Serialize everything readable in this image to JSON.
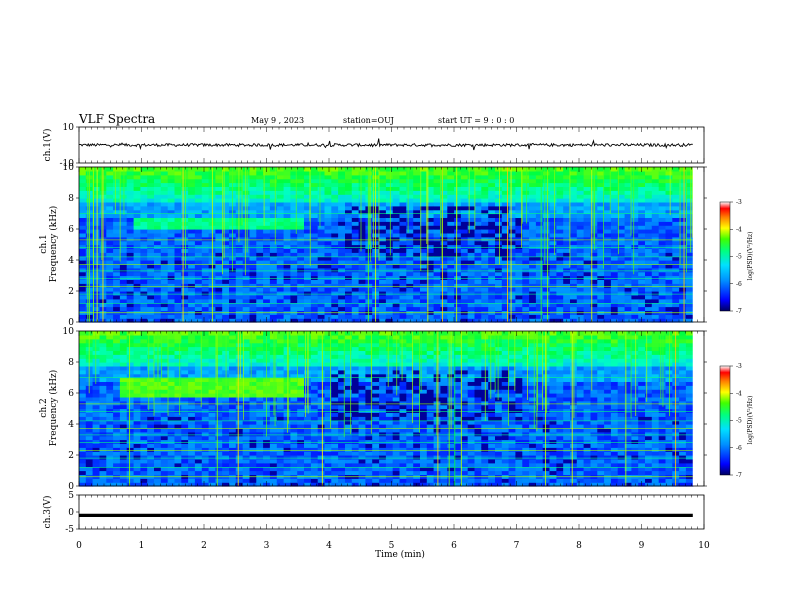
{
  "header": {
    "title": "VLF Spectra",
    "date": "May 9 , 2023",
    "station": "station=OUJ",
    "start_ut": "start UT = 9 : 0 : 0"
  },
  "chart_data": [
    {
      "type": "line",
      "id": "ch1-waveform",
      "ylabel": "ch.1(V)",
      "xlim": [
        0,
        10
      ],
      "ylim": [
        -10,
        10
      ],
      "ytick_labels": [
        "10",
        "-10"
      ],
      "series_summary": "noise trace around 0 V, amplitude ~±1 V, occasional spikes",
      "baseline_y": 0
    },
    {
      "type": "heatmap",
      "id": "ch1-spectrogram",
      "ylabel": "ch.1\nFrequency (kHz)",
      "ylim": [
        0,
        10
      ],
      "ytick_labels": [
        "0",
        "2",
        "4",
        "6",
        "8",
        "10"
      ],
      "colorbar": {
        "label": "log(PSD)(V²/Hz)",
        "range": [
          -7,
          -3
        ],
        "tick_labels": [
          "-3",
          "-4",
          "-5",
          "-6",
          "-7"
        ]
      },
      "features": [
        {
          "name": "hiss band",
          "t": [
            0.8,
            3.6
          ],
          "f": [
            5.8,
            6.6
          ]
        },
        {
          "name": "upper broadband",
          "t": [
            0,
            9.8
          ],
          "f": [
            7.5,
            10
          ]
        }
      ]
    },
    {
      "type": "heatmap",
      "id": "ch2-spectrogram",
      "ylabel": "ch.2\nFrequency (kHz)",
      "ylim": [
        0,
        10
      ],
      "ytick_labels": [
        "0",
        "2",
        "4",
        "6",
        "8",
        "10"
      ],
      "colorbar": {
        "label": "log(PSD)(V²/Hz)",
        "range": [
          -7,
          -3
        ],
        "tick_labels": [
          "-3",
          "-4",
          "-5",
          "-6",
          "-7"
        ]
      },
      "features": [
        {
          "name": "hiss band",
          "t": [
            0.6,
            3.6
          ],
          "f": [
            5.6,
            6.8
          ]
        },
        {
          "name": "upper broadband",
          "t": [
            0,
            9.8
          ],
          "f": [
            7.5,
            10
          ]
        }
      ]
    },
    {
      "type": "line",
      "id": "ch3-waveform",
      "ylabel": "ch.3(V)",
      "xlim": [
        0,
        10
      ],
      "ylim": [
        -5,
        5
      ],
      "ytick_labels": [
        "5",
        "0",
        "-5"
      ],
      "series_summary": "flat line at about -1 V",
      "baseline_y": -1
    }
  ],
  "x_axis": {
    "label": "Time (min)",
    "range": [
      0,
      10
    ],
    "tick_labels": [
      "0",
      "1",
      "2",
      "3",
      "4",
      "5",
      "6",
      "7",
      "8",
      "9",
      "10"
    ],
    "data_end": 9.82
  },
  "colors": {
    "colormap": [
      "#000080",
      "#0000ff",
      "#0080ff",
      "#00c0ff",
      "#00ffc0",
      "#00ff40",
      "#80ff00",
      "#ffff00",
      "#ff8000",
      "#ff0000",
      "#ffffff"
    ],
    "trace": "#000000"
  }
}
